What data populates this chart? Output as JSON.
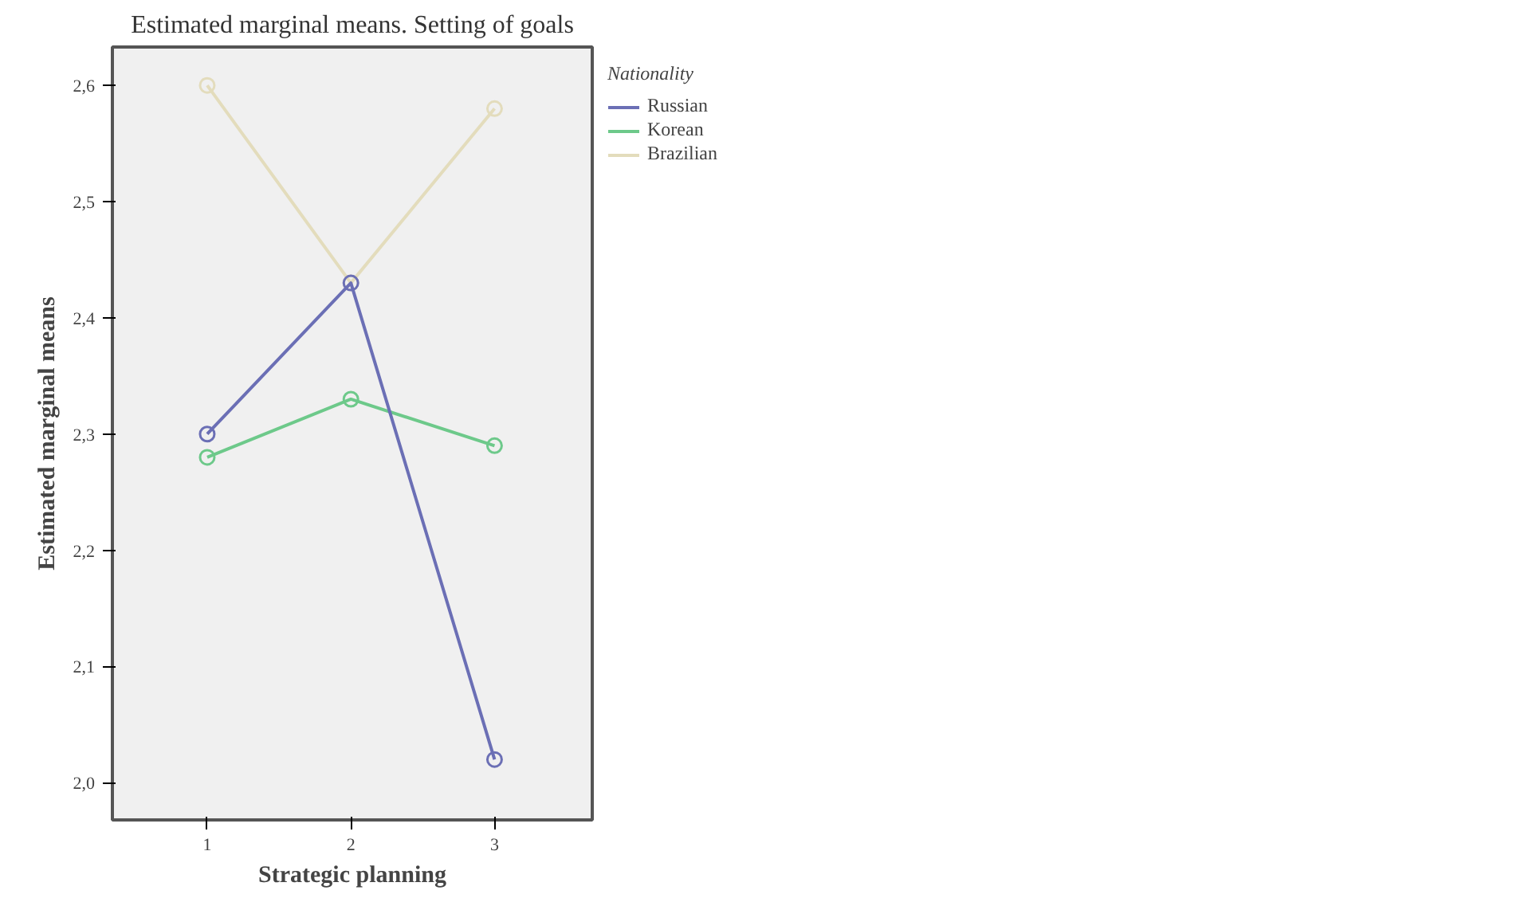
{
  "chart_data": {
    "type": "line",
    "title": "Estimated marginal means. Setting of goals",
    "xlabel": "Strategic planning",
    "ylabel": "Estimated marginal means",
    "legend_title": "Nationality",
    "x": [
      1,
      2,
      3
    ],
    "series": [
      {
        "name": "Russian",
        "color": "#6b6fb5",
        "values": [
          2.3,
          2.43,
          2.02
        ]
      },
      {
        "name": "Korean",
        "color": "#6dc98a",
        "values": [
          2.28,
          2.33,
          2.29
        ]
      },
      {
        "name": "Brazilian",
        "color": "#e3dcbc",
        "values": [
          2.6,
          2.43,
          2.58
        ]
      }
    ],
    "xlim": [
      0.34,
      3.68
    ],
    "xticks": [
      1,
      2,
      3
    ],
    "ylim": [
      1.968,
      2.633
    ],
    "yticks": [
      {
        "value": 2.0,
        "label": "2,0"
      },
      {
        "value": 2.1,
        "label": "2,1"
      },
      {
        "value": 2.2,
        "label": "2,2"
      },
      {
        "value": 2.3,
        "label": "2,3"
      },
      {
        "value": 2.4,
        "label": "2,4"
      },
      {
        "value": 2.5,
        "label": "2,5"
      },
      {
        "value": 2.6,
        "label": "2,6"
      }
    ],
    "marker": "circle",
    "line_style": "solid",
    "grid": false,
    "legend": "right"
  }
}
